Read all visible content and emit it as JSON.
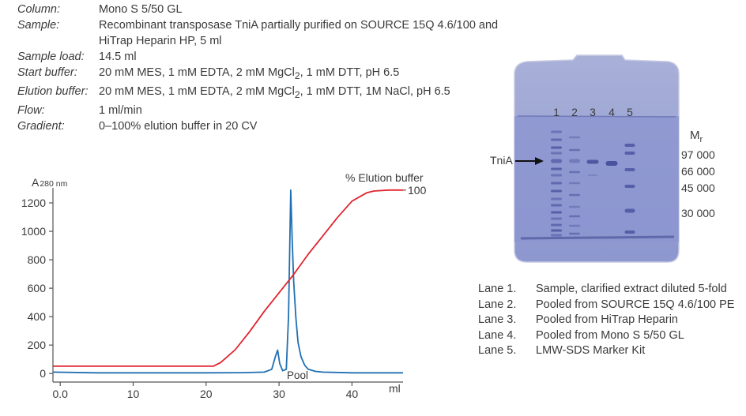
{
  "parameters": [
    {
      "label": "Column:",
      "value": "Mono S 5/50 GL"
    },
    {
      "label": "Sample:",
      "value": "Recombinant transposase TniA partially purified on SOURCE 15Q 4.6/100 and HiTrap Heparin HP, 5 ml"
    },
    {
      "label": "Sample load:",
      "value": "14.5 ml"
    },
    {
      "label": "Start buffer:",
      "value_pre": "20 mM MES, 1 mM EDTA, 2 mM MgCl",
      "value_sub": "2",
      "value_post": ", 1 mM DTT, pH 6.5"
    },
    {
      "label": "Elution buffer:",
      "value_pre": "20 mM MES, 1 mM EDTA, 2 mM MgCl",
      "value_sub": "2",
      "value_post": ", 1 mM DTT, 1M NaCl, pH 6.5"
    },
    {
      "label": "Flow:",
      "value": "1 ml/min"
    },
    {
      "label": "Gradient:",
      "value": "0–100% elution buffer in 20 CV"
    }
  ],
  "chart_data": {
    "type": "line",
    "ylabel_main": "A",
    "ylabel_sub": "280 nm",
    "xlabel": "ml",
    "y2label": "% Elution buffer",
    "xlim": [
      -1,
      47
    ],
    "ylim": [
      -60,
      1350
    ],
    "y2lim": [
      0,
      100
    ],
    "x_ticks": [
      "0.0",
      "10",
      "20",
      "30",
      "40"
    ],
    "x_tick_values": [
      0,
      10,
      20,
      30,
      40
    ],
    "y_ticks": [
      "0",
      "200",
      "400",
      "600",
      "800",
      "1000",
      "1200"
    ],
    "y_tick_values": [
      0,
      200,
      400,
      600,
      800,
      1000,
      1200
    ],
    "y2_ticks": [
      "100"
    ],
    "y2_tick_values": [
      100
    ],
    "annotation": {
      "text": "Pool",
      "x": 31.5,
      "y": -10
    },
    "series": [
      {
        "color": "#1f6fb2",
        "axis": "left",
        "x": [
          -1,
          5,
          10,
          15,
          20,
          25,
          28,
          29,
          29.5,
          29.8,
          30.1,
          30.5,
          31,
          31.3,
          31.6,
          31.8,
          32,
          32.3,
          32.6,
          33,
          33.5,
          34,
          35,
          36,
          40,
          45,
          47
        ],
        "y": [
          10,
          5,
          5,
          5,
          5,
          6,
          10,
          30,
          120,
          165,
          70,
          20,
          30,
          400,
          1290,
          950,
          650,
          400,
          220,
          120,
          60,
          30,
          15,
          10,
          5,
          5,
          5
        ]
      },
      {
        "color": "#e0242e",
        "axis": "right",
        "x": [
          -1,
          10,
          21,
          22,
          24,
          26,
          28,
          30,
          32,
          34,
          36,
          38,
          40,
          42,
          43,
          45,
          47
        ],
        "y": [
          4,
          4,
          4,
          6,
          13,
          23,
          34,
          44,
          54,
          65,
          75,
          85,
          94,
          98.5,
          99.5,
          100,
          100
        ]
      }
    ]
  },
  "gel": {
    "title": "TniA",
    "lane_labels": [
      "1",
      "2",
      "3",
      "4",
      "5"
    ],
    "mr_main": "M",
    "mr_sub": "r",
    "mr_labels": [
      "97 000",
      "66 000",
      "45 000",
      "30 000"
    ]
  },
  "lanes": [
    {
      "num": "Lane 1.",
      "text": "Sample, clarified extract diluted 5-fold"
    },
    {
      "num": "Lane 2.",
      "text": "Pooled from SOURCE 15Q 4.6/100 PE"
    },
    {
      "num": "Lane 3.",
      "text": "Pooled from HiTrap Heparin"
    },
    {
      "num": "Lane 4.",
      "text": "Pooled from Mono S 5/50 GL"
    },
    {
      "num": "Lane 5.",
      "text": "LMW-SDS Marker Kit"
    }
  ]
}
